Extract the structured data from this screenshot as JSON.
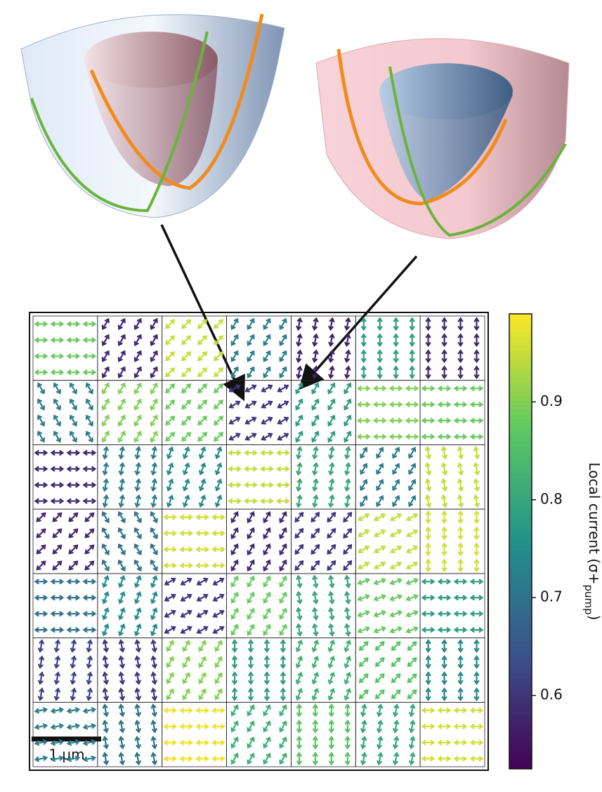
{
  "chart_data": {
    "type": "quiver",
    "scale_bar_label": "1 μm",
    "colorbar": {
      "label": "Local current (σ+",
      "label_sub": "pump",
      "label_end": ")",
      "clim": [
        0.525,
        0.99
      ],
      "ticks": [
        0.6,
        0.7,
        0.8,
        0.9
      ]
    },
    "domains": {
      "values": [
        [
          0.88,
          0.58,
          0.95,
          0.72,
          0.57,
          0.78,
          0.58
        ],
        [
          0.72,
          0.9,
          0.88,
          0.6,
          0.78,
          0.9,
          0.88
        ],
        [
          0.58,
          0.72,
          0.74,
          0.95,
          0.8,
          0.72,
          0.95
        ],
        [
          0.58,
          0.7,
          0.96,
          0.58,
          0.6,
          0.95,
          0.96
        ],
        [
          0.7,
          0.74,
          0.6,
          0.88,
          0.8,
          0.88,
          0.78
        ],
        [
          0.62,
          0.6,
          0.9,
          0.78,
          0.82,
          0.86,
          0.74
        ],
        [
          0.72,
          0.7,
          0.98,
          0.82,
          0.86,
          0.8,
          0.96
        ]
      ],
      "angles": [
        [
          0,
          60,
          45,
          60,
          80,
          90,
          90
        ],
        [
          120,
          60,
          45,
          30,
          60,
          0,
          0
        ],
        [
          0,
          80,
          70,
          0,
          80,
          60,
          100
        ],
        [
          45,
          120,
          0,
          60,
          50,
          30,
          90
        ],
        [
          0,
          70,
          30,
          60,
          100,
          20,
          0
        ],
        [
          80,
          100,
          60,
          90,
          70,
          45,
          90
        ],
        [
          10,
          100,
          0,
          60,
          90,
          80,
          0
        ]
      ]
    }
  }
}
